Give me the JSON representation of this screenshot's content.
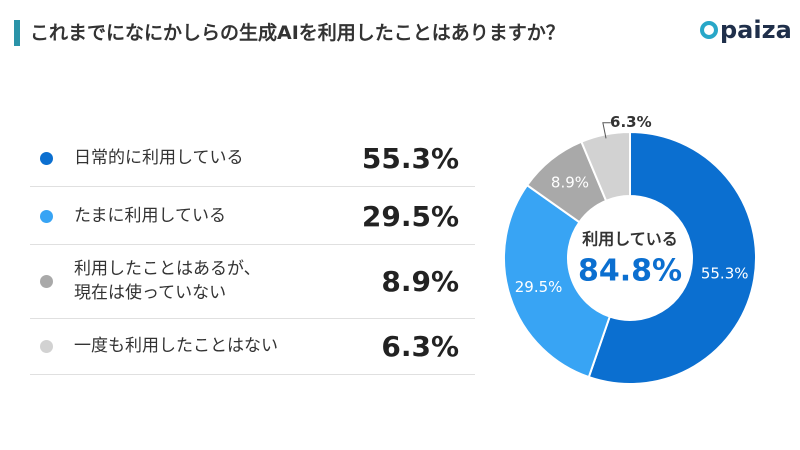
{
  "chart_data": {
    "type": "donut",
    "title": "これまでになにかしらの生成AIを利用したことはありますか？",
    "logo": "paiza",
    "categories": [
      "日常的に利用している",
      "たまに利用している",
      "利用したことはあるが、\n現在は使っていない",
      "一度も利用したことはない"
    ],
    "values": [
      55.3,
      29.5,
      8.9,
      6.3
    ],
    "value_labels": [
      "55.3%",
      "29.5%",
      "8.9%",
      "6.3%"
    ],
    "colors": [
      "#0b6fd0",
      "#38a4f4",
      "#a9a9a9",
      "#d2d2d2"
    ],
    "center_text": "利用している",
    "center_value_label": "84.8%"
  }
}
